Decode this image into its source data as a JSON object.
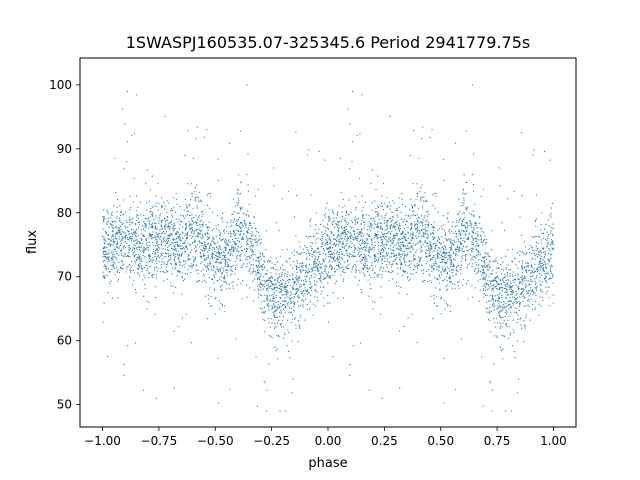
{
  "chart_data": {
    "type": "scatter",
    "title": "1SWASPJ160535.07-325345.6 Period 2941779.75s",
    "xlabel": "phase",
    "ylabel": "flux",
    "xlim": [
      -1.1,
      1.1
    ],
    "ylim": [
      46.5,
      104.2
    ],
    "x_ticks": [
      -1.0,
      -0.75,
      -0.5,
      -0.25,
      0.0,
      0.25,
      0.5,
      0.75,
      1.0
    ],
    "x_tick_labels": [
      "−1.00",
      "−0.75",
      "−0.50",
      "−0.25",
      "0.00",
      "0.25",
      "0.50",
      "0.75",
      "1.00"
    ],
    "y_ticks": [
      50,
      60,
      70,
      80,
      90,
      100
    ],
    "y_tick_labels": [
      "50",
      "60",
      "70",
      "80",
      "90",
      "100"
    ],
    "grid": false,
    "legend": "none",
    "marker_color": "#1f77b4",
    "series": [
      {
        "phase_flux_trend": [
          [
            0.0,
            74
          ],
          [
            0.05,
            75
          ],
          [
            0.1,
            76
          ],
          [
            0.15,
            75
          ],
          [
            0.2,
            75
          ],
          [
            0.25,
            76
          ],
          [
            0.3,
            75
          ],
          [
            0.35,
            74
          ],
          [
            0.4,
            78
          ],
          [
            0.45,
            75
          ],
          [
            0.5,
            73
          ],
          [
            0.55,
            72
          ],
          [
            0.6,
            77
          ],
          [
            0.65,
            76
          ],
          [
            0.7,
            70
          ],
          [
            0.75,
            67
          ],
          [
            0.8,
            67
          ],
          [
            0.85,
            68
          ],
          [
            0.9,
            70
          ],
          [
            0.95,
            72
          ],
          [
            1.0,
            74
          ]
        ],
        "points_per_cycle": 2600,
        "scatter_sd": 3.2
      }
    ]
  }
}
